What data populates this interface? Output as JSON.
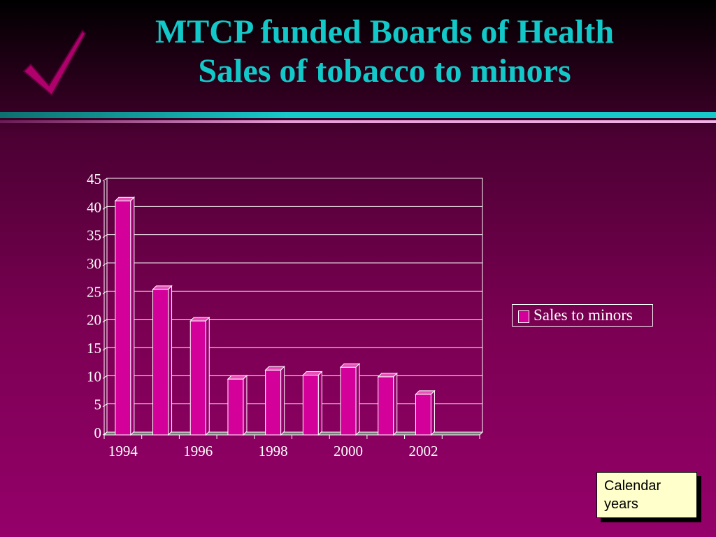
{
  "slide": {
    "title_line1": "MTCP funded Boards of Health",
    "title_line2": "Sales of tobacco to minors",
    "note": "Calendar years",
    "colors": {
      "title": "#12c8c8",
      "bar": "#d4009a",
      "checkmark": "#b0006c",
      "note_bg": "#ffffcc"
    }
  },
  "chart_data": {
    "type": "bar",
    "categories": [
      "1994",
      "1995",
      "1996",
      "1997",
      "1998",
      "1999",
      "2000",
      "2001",
      "2002"
    ],
    "x_tick_labels": [
      "1994",
      "1996",
      "1998",
      "2000",
      "2002"
    ],
    "series": [
      {
        "name": "Sales to minors",
        "values": [
          41.5,
          25.8,
          20.2,
          9.9,
          11.5,
          10.6,
          12.0,
          10.3,
          7.2
        ]
      }
    ],
    "ylim": [
      0,
      45
    ],
    "yticks": [
      0,
      5,
      10,
      15,
      20,
      25,
      30,
      35,
      40,
      45
    ],
    "grid": true,
    "legend": "right",
    "three_d": true
  }
}
